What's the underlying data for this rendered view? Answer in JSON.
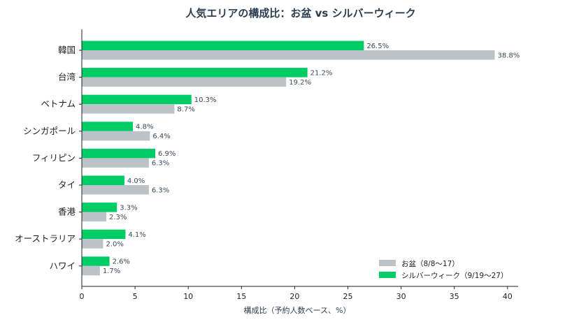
{
  "chart_data": {
    "type": "bar",
    "orientation": "horizontal",
    "title": "人気エリアの構成比：お盆 vs シルバーウィーク",
    "xlabel": "構成比（予約人数ベース、%）",
    "ylabel": "",
    "xlim": [
      0,
      41
    ],
    "xticks": [
      0,
      5,
      10,
      15,
      20,
      25,
      30,
      35,
      40
    ],
    "grid": false,
    "legend_position": "bottom-right",
    "categories": [
      "韓国",
      "台湾",
      "ベトナム",
      "シンガポール",
      "フィリピン",
      "タイ",
      "香港",
      "オーストラリア",
      "ハワイ"
    ],
    "series": [
      {
        "name": "シルバーウィーク（9/19〜27）",
        "color": "#00cc66",
        "values": [
          26.5,
          21.2,
          10.3,
          4.8,
          6.9,
          4.0,
          3.3,
          4.1,
          2.6
        ],
        "labels": [
          "26.5%",
          "21.2%",
          "10.3%",
          "4.8%",
          "6.9%",
          "4.0%",
          "3.3%",
          "4.1%",
          "2.6%"
        ]
      },
      {
        "name": "お盆（8/8〜17）",
        "color": "#bcc3c8",
        "values": [
          38.8,
          19.2,
          8.7,
          6.4,
          6.3,
          6.3,
          2.3,
          2.0,
          1.7
        ],
        "labels": [
          "38.8%",
          "19.2%",
          "8.7%",
          "6.4%",
          "6.3%",
          "6.3%",
          "2.3%",
          "2.0%",
          "1.7%"
        ]
      }
    ],
    "legend_order": [
      "お盆（8/8〜17）",
      "シルバーウィーク（9/19〜27）"
    ]
  }
}
